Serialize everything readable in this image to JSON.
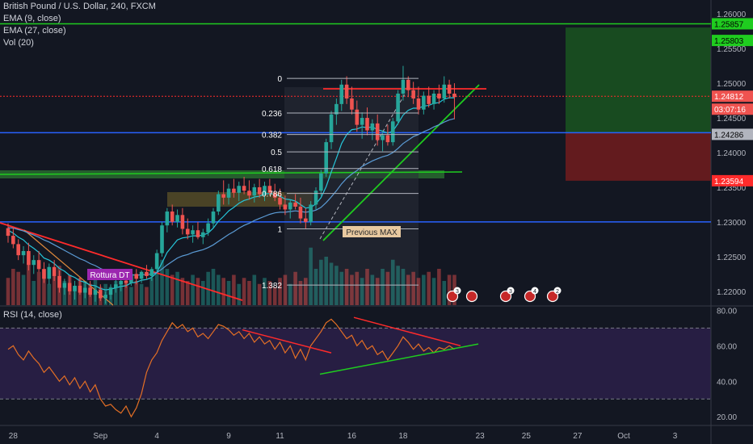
{
  "header": {
    "symbol": "British Pound / U.S. Dollar, 240, FXCM",
    "ema9": "EMA (9, close)",
    "ema27": "EMA (27, close)",
    "vol": "Vol (20)",
    "rsi": "RSI (14, close)"
  },
  "colors": {
    "bg": "#131722",
    "up": "#26a69a",
    "down": "#ef5350",
    "green_line": "#1fcc1f",
    "red_line": "#ff2b2b",
    "blue_line": "#2962ff",
    "rsi_line": "#e46f25",
    "rsi_band": "#2a1f47"
  },
  "chart_data": [
    {
      "type": "candlestick",
      "y_axis": {
        "ylim": [
          1.218,
          1.262
        ],
        "ticks": [
          "1.26000",
          "1.25500",
          "1.25000",
          "1.24500",
          "1.24000",
          "1.23500",
          "1.23000",
          "1.22500",
          "1.22000"
        ]
      },
      "x_axis": {
        "ticks": [
          {
            "label": "28",
            "i": 1
          },
          {
            "label": "Sep",
            "i": 18
          },
          {
            "label": "4",
            "i": 29
          },
          {
            "label": "9",
            "i": 43
          },
          {
            "label": "11",
            "i": 53
          },
          {
            "label": "16",
            "i": 67
          },
          {
            "label": "18",
            "i": 77
          },
          {
            "label": "23",
            "i": 92
          },
          {
            "label": "25",
            "i": 101
          },
          {
            "label": "27",
            "i": 111
          },
          {
            "label": "Oct",
            "i": 120
          },
          {
            "label": "3",
            "i": 130
          }
        ]
      },
      "candles": [
        [
          1.2291,
          1.2298,
          1.227,
          1.228
        ],
        [
          1.228,
          1.2292,
          1.2262,
          1.2268
        ],
        [
          1.2268,
          1.2275,
          1.2245,
          1.2252
        ],
        [
          1.2252,
          1.2265,
          1.224,
          1.2258
        ],
        [
          1.2258,
          1.227,
          1.223,
          1.2238
        ],
        [
          1.2238,
          1.2252,
          1.2225,
          1.2245
        ],
        [
          1.2245,
          1.2258,
          1.2228,
          1.2232
        ],
        [
          1.2232,
          1.2242,
          1.2212,
          1.2218
        ],
        [
          1.2218,
          1.224,
          1.221,
          1.2235
        ],
        [
          1.2235,
          1.2245,
          1.2215,
          1.2222
        ],
        [
          1.2222,
          1.223,
          1.2198,
          1.2205
        ],
        [
          1.2205,
          1.2218,
          1.2195,
          1.2212
        ],
        [
          1.2212,
          1.2222,
          1.2195,
          1.22
        ],
        [
          1.22,
          1.2215,
          1.2188,
          1.2208
        ],
        [
          1.2208,
          1.222,
          1.2195,
          1.2198
        ],
        [
          1.2198,
          1.2212,
          1.219,
          1.2205
        ],
        [
          1.2205,
          1.2215,
          1.2192,
          1.2195
        ],
        [
          1.2195,
          1.2208,
          1.2185,
          1.2202
        ],
        [
          1.2202,
          1.221,
          1.2186,
          1.219
        ],
        [
          1.219,
          1.22,
          1.2182,
          1.2195
        ],
        [
          1.2195,
          1.221,
          1.2188,
          1.2205
        ],
        [
          1.2205,
          1.2218,
          1.2198,
          1.221
        ],
        [
          1.221,
          1.2222,
          1.22,
          1.2215
        ],
        [
          1.2215,
          1.2225,
          1.2205,
          1.2212
        ],
        [
          1.2212,
          1.2228,
          1.2208,
          1.2225
        ],
        [
          1.2225,
          1.2232,
          1.221,
          1.2218
        ],
        [
          1.2218,
          1.223,
          1.2212,
          1.2228
        ],
        [
          1.2228,
          1.2238,
          1.2218,
          1.2222
        ],
        [
          1.2222,
          1.2235,
          1.2215,
          1.2232
        ],
        [
          1.2232,
          1.226,
          1.2228,
          1.2255
        ],
        [
          1.2255,
          1.23,
          1.225,
          1.2295
        ],
        [
          1.2295,
          1.232,
          1.2285,
          1.2315
        ],
        [
          1.2315,
          1.2325,
          1.2295,
          1.23
        ],
        [
          1.23,
          1.2318,
          1.2292,
          1.231
        ],
        [
          1.231,
          1.232,
          1.2282,
          1.229
        ],
        [
          1.229,
          1.2305,
          1.2275,
          1.2282
        ],
        [
          1.2282,
          1.2295,
          1.227,
          1.2288
        ],
        [
          1.2288,
          1.23,
          1.2275,
          1.2278
        ],
        [
          1.2278,
          1.229,
          1.2268,
          1.2285
        ],
        [
          1.2285,
          1.2305,
          1.228,
          1.2298
        ],
        [
          1.2298,
          1.232,
          1.2292,
          1.2315
        ],
        [
          1.2315,
          1.2345,
          1.231,
          1.234
        ],
        [
          1.234,
          1.236,
          1.2325,
          1.2335
        ],
        [
          1.2335,
          1.2355,
          1.2325,
          1.2348
        ],
        [
          1.2348,
          1.2362,
          1.2335,
          1.2342
        ],
        [
          1.2342,
          1.2358,
          1.233,
          1.2352
        ],
        [
          1.2352,
          1.2365,
          1.234,
          1.2345
        ],
        [
          1.2345,
          1.236,
          1.2332,
          1.2338
        ],
        [
          1.2338,
          1.2355,
          1.2328,
          1.235
        ],
        [
          1.235,
          1.2362,
          1.2335,
          1.234
        ],
        [
          1.234,
          1.2358,
          1.233,
          1.2352
        ],
        [
          1.2352,
          1.2362,
          1.2338,
          1.2342
        ],
        [
          1.2342,
          1.2355,
          1.233,
          1.2335
        ],
        [
          1.2335,
          1.2348,
          1.2318,
          1.2325
        ],
        [
          1.2325,
          1.2338,
          1.231,
          1.2318
        ],
        [
          1.2318,
          1.2332,
          1.2305,
          1.2328
        ],
        [
          1.2328,
          1.234,
          1.2318,
          1.2322
        ],
        [
          1.2322,
          1.2335,
          1.2298,
          1.2305
        ],
        [
          1.2305,
          1.232,
          1.229,
          1.23
        ],
        [
          1.23,
          1.233,
          1.2295,
          1.2325
        ],
        [
          1.2325,
          1.235,
          1.2318,
          1.2345
        ],
        [
          1.2345,
          1.2375,
          1.2338,
          1.237
        ],
        [
          1.237,
          1.242,
          1.2365,
          1.2415
        ],
        [
          1.2415,
          1.246,
          1.2405,
          1.2455
        ],
        [
          1.2455,
          1.2478,
          1.244,
          1.247
        ],
        [
          1.247,
          1.2505,
          1.246,
          1.2498
        ],
        [
          1.2498,
          1.251,
          1.247,
          1.2478
        ],
        [
          1.2478,
          1.2495,
          1.2455,
          1.2462
        ],
        [
          1.2462,
          1.2475,
          1.243,
          1.244
        ],
        [
          1.244,
          1.2458,
          1.242,
          1.245
        ],
        [
          1.245,
          1.2465,
          1.2425,
          1.2432
        ],
        [
          1.2432,
          1.2448,
          1.2418,
          1.2442
        ],
        [
          1.2442,
          1.2455,
          1.241,
          1.2418
        ],
        [
          1.2418,
          1.2432,
          1.2402,
          1.2425
        ],
        [
          1.2425,
          1.244,
          1.241,
          1.2415
        ],
        [
          1.2415,
          1.245,
          1.241,
          1.2445
        ],
        [
          1.2445,
          1.249,
          1.244,
          1.2485
        ],
        [
          1.2485,
          1.2525,
          1.2475,
          1.2505
        ],
        [
          1.2505,
          1.251,
          1.248,
          1.249
        ],
        [
          1.249,
          1.2502,
          1.247,
          1.2478
        ],
        [
          1.2478,
          1.2495,
          1.2455,
          1.2462
        ],
        [
          1.2462,
          1.2488,
          1.2455,
          1.2482
        ],
        [
          1.2482,
          1.2495,
          1.2465,
          1.247
        ],
        [
          1.247,
          1.249,
          1.2462,
          1.2485
        ],
        [
          1.2485,
          1.2498,
          1.247,
          1.2478
        ],
        [
          1.2478,
          1.251,
          1.2472,
          1.2498
        ],
        [
          1.2498,
          1.2505,
          1.2478,
          1.2485
        ],
        [
          1.2485,
          1.25,
          1.2448,
          1.248
        ]
      ],
      "ema9": [
        1.2288,
        1.2284,
        1.2278,
        1.2274,
        1.2267,
        1.2262,
        1.2256,
        1.2248,
        1.2245,
        1.224,
        1.2233,
        1.2229,
        1.2223,
        1.222,
        1.2215,
        1.2213,
        1.2209,
        1.2208,
        1.2204,
        1.2202,
        1.2203,
        1.2205,
        1.2207,
        1.2208,
        1.2212,
        1.2213,
        1.2216,
        1.2217,
        1.222,
        1.2227,
        1.2241,
        1.2256,
        1.2265,
        1.2274,
        1.2277,
        1.2278,
        1.228,
        1.228,
        1.2281,
        1.2284,
        1.2291,
        1.2301,
        1.2308,
        1.2316,
        1.2321,
        1.2327,
        1.2331,
        1.2333,
        1.2336,
        1.2337,
        1.234,
        1.2341,
        1.234,
        1.2337,
        1.2333,
        1.2332,
        1.233,
        1.2325,
        1.232,
        1.2321,
        1.2326,
        1.2335,
        1.2351,
        1.2372,
        1.2392,
        1.2413,
        1.2426,
        1.2433,
        1.2434,
        1.2437,
        1.2436,
        1.2437,
        1.2433,
        1.2431,
        1.2428,
        1.2431,
        1.2442,
        1.2454,
        1.2461,
        1.2464,
        1.2464,
        1.2467,
        1.2468,
        1.2471,
        1.2472,
        1.2477,
        1.2479,
        1.2479
      ],
      "ema27": [
        1.2292,
        1.2291,
        1.2289,
        1.2287,
        1.2284,
        1.2281,
        1.2278,
        1.2274,
        1.2271,
        1.2267,
        1.2263,
        1.2259,
        1.2255,
        1.2251,
        1.2247,
        1.2244,
        1.224,
        1.2237,
        1.2233,
        1.223,
        1.2228,
        1.2226,
        1.2225,
        1.2224,
        1.2224,
        1.2223,
        1.2224,
        1.2224,
        1.2225,
        1.2227,
        1.2232,
        1.2238,
        1.2243,
        1.2248,
        1.2251,
        1.2253,
        1.2256,
        1.2258,
        1.226,
        1.2263,
        1.2267,
        1.2272,
        1.2277,
        1.2282,
        1.2286,
        1.2291,
        1.2295,
        1.2298,
        1.2302,
        1.2305,
        1.2308,
        1.2311,
        1.2313,
        1.2314,
        1.2314,
        1.2315,
        1.2316,
        1.2315,
        1.2314,
        1.2315,
        1.2317,
        1.2321,
        1.2328,
        1.2336,
        1.2345,
        1.2355,
        1.2363,
        1.2369,
        1.2374,
        1.238,
        1.2384,
        1.2388,
        1.2391,
        1.2394,
        1.2396,
        1.24,
        1.2406,
        1.2413,
        1.2418,
        1.2423,
        1.2426,
        1.243,
        1.2433,
        1.2437,
        1.244,
        1.2444,
        1.2447,
        1.2449
      ],
      "volume": [
        0.45,
        0.6,
        0.55,
        0.5,
        0.7,
        0.4,
        0.55,
        0.6,
        0.35,
        0.5,
        0.65,
        0.4,
        0.5,
        0.3,
        0.45,
        0.4,
        0.35,
        0.5,
        0.3,
        0.35,
        0.3,
        0.4,
        0.35,
        0.45,
        0.3,
        0.4,
        0.35,
        0.3,
        0.45,
        0.55,
        0.75,
        0.6,
        0.5,
        0.55,
        0.45,
        0.4,
        0.5,
        0.45,
        0.4,
        0.55,
        0.6,
        0.5,
        0.45,
        0.4,
        0.5,
        0.35,
        0.45,
        0.4,
        0.5,
        0.35,
        0.45,
        0.4,
        0.3,
        0.45,
        0.5,
        0.35,
        0.55,
        0.4,
        0.45,
        0.95,
        0.6,
        0.75,
        0.8,
        0.7,
        0.65,
        0.55,
        0.6,
        0.5,
        0.55,
        0.45,
        0.6,
        0.5,
        0.45,
        0.6,
        0.55,
        0.75,
        0.65,
        0.6,
        0.5,
        0.55,
        0.45,
        0.5,
        0.55,
        0.45,
        0.6,
        0.4,
        0.5,
        0.5
      ],
      "last_price_labels": [
        "1.25857",
        "1.25803",
        "1.24812",
        "03:07:16",
        "1.24286",
        "1.23594"
      ],
      "drawings": {
        "fib_labels": [
          "0",
          "0.236",
          "0.382",
          "0.5",
          "0.618",
          "0.786",
          "1",
          "1.382"
        ],
        "fib_levels": [
          1.2507,
          1.2457,
          1.2426,
          1.2401,
          1.2377,
          1.2341,
          1.229,
          1.2209
        ],
        "horizontal_lines": [
          {
            "price": 1.25857,
            "color": "#1fcc1f"
          },
          {
            "price": 1.24812,
            "color": "#ff2b2b",
            "dashed": true
          },
          {
            "price": 1.24286,
            "color": "#2962ff"
          },
          {
            "price": 1.23,
            "color": "#2962ff"
          }
        ],
        "annotations": [
          "Previous MAX",
          "Rottura DT"
        ],
        "event_badges": [
          "3",
          "3",
          "4",
          "2"
        ],
        "long_position": {
          "entry": 1.24286,
          "target": 1.25803,
          "stop": 1.23594
        }
      }
    },
    {
      "type": "line",
      "name": "RSI",
      "ylim": [
        16,
        82
      ],
      "ticks": [
        "80.00",
        "60.00",
        "40.00",
        "20.00"
      ],
      "band": [
        30,
        70
      ],
      "values": [
        58,
        60,
        55,
        52,
        57,
        53,
        50,
        45,
        48,
        44,
        40,
        43,
        38,
        42,
        36,
        40,
        34,
        38,
        30,
        26,
        27,
        24,
        22,
        26,
        20,
        25,
        33,
        45,
        52,
        56,
        63,
        68,
        73,
        70,
        72,
        68,
        70,
        65,
        67,
        64,
        68,
        72,
        71,
        69,
        66,
        68,
        64,
        67,
        62,
        65,
        61,
        63,
        58,
        62,
        56,
        60,
        53,
        58,
        52,
        60,
        64,
        68,
        73,
        75,
        72,
        68,
        64,
        66,
        60,
        63,
        58,
        60,
        55,
        57,
        52,
        56,
        60,
        65,
        62,
        58,
        61,
        57,
        59,
        56,
        59,
        58,
        60,
        58
      ]
    }
  ]
}
